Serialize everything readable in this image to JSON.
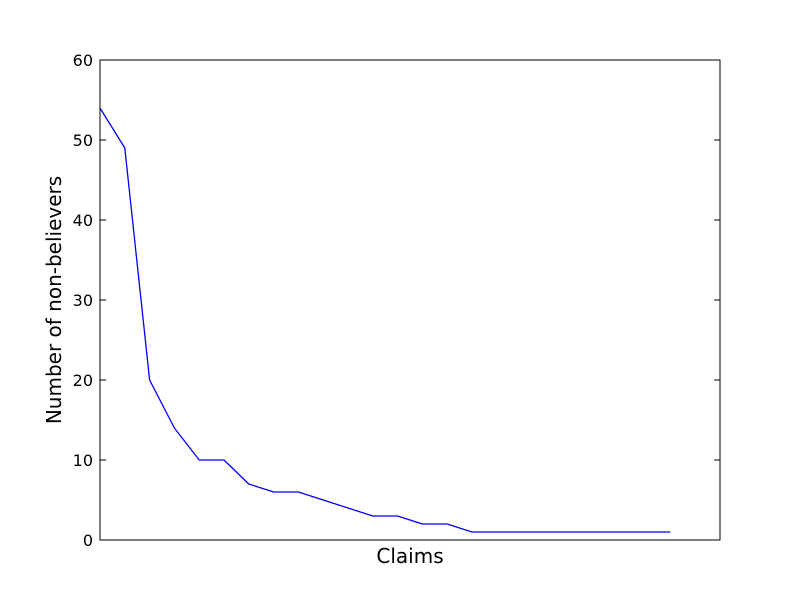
{
  "chart_data": {
    "type": "line",
    "title": "",
    "xlabel": "Claims",
    "ylabel": "Number of non-believers",
    "xlim": [
      0,
      25
    ],
    "ylim": [
      0,
      60
    ],
    "yticks": [
      0,
      10,
      20,
      30,
      40,
      50,
      60
    ],
    "xticks": [],
    "grid": false,
    "legend": "none",
    "series": [
      {
        "color": "#0000ff",
        "x": [
          0,
          1,
          2,
          3,
          4,
          5,
          6,
          7,
          8,
          9,
          10,
          11,
          12,
          13,
          14,
          15,
          16,
          17,
          18,
          19,
          20,
          21,
          22,
          23
        ],
        "y": [
          54,
          49,
          20,
          14,
          10,
          10,
          7,
          6,
          6,
          5,
          4,
          3,
          3,
          2,
          2,
          1,
          1,
          1,
          1,
          1,
          1,
          1,
          1,
          1
        ]
      }
    ]
  }
}
